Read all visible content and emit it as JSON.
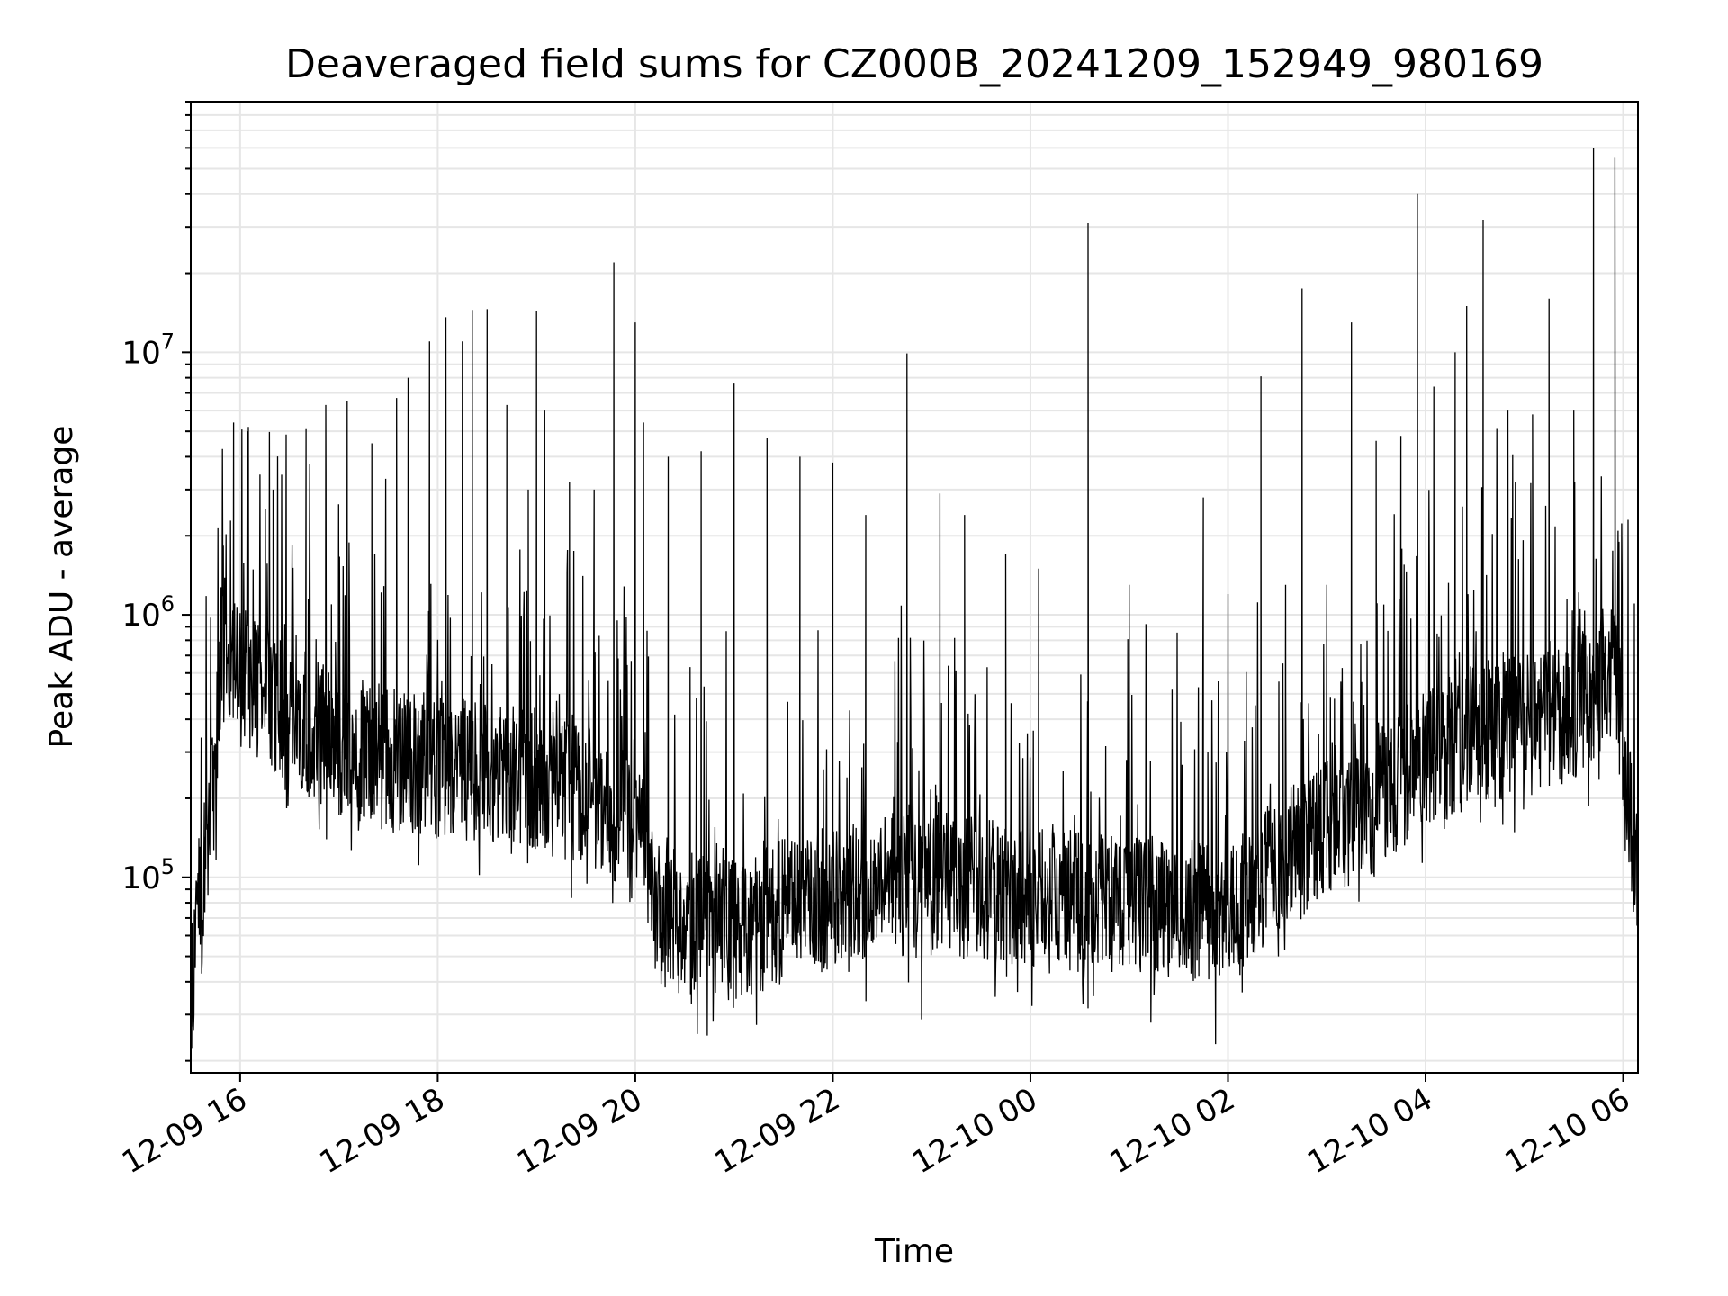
{
  "chart_data": {
    "type": "line",
    "title": "Deaveraged field sums for CZ000B_20241209_152949_980169",
    "xlabel": "Time",
    "ylabel": "Peak ADU - average",
    "yscale": "log",
    "ylim": [
      18000,
      90000000
    ],
    "xlim": [
      "2024-12-09 15:30",
      "2024-12-10 06:09"
    ],
    "grid": true,
    "line_color": "#000000",
    "grid_color": "#e6e6e6",
    "x_ticks": [
      {
        "t": "2024-12-09 16:00",
        "label": "12-09 16"
      },
      {
        "t": "2024-12-09 18:00",
        "label": "12-09 18"
      },
      {
        "t": "2024-12-09 20:00",
        "label": "12-09 20"
      },
      {
        "t": "2024-12-09 22:00",
        "label": "12-09 22"
      },
      {
        "t": "2024-12-10 00:00",
        "label": "12-10 00"
      },
      {
        "t": "2024-12-10 02:00",
        "label": "12-10 02"
      },
      {
        "t": "2024-12-10 04:00",
        "label": "12-10 04"
      },
      {
        "t": "2024-12-10 06:00",
        "label": "12-10 06"
      }
    ],
    "y_ticks": [
      {
        "value": 100000,
        "base": "10",
        "exp": "5"
      },
      {
        "value": 1000000,
        "base": "10",
        "exp": "6"
      },
      {
        "value": 10000000,
        "base": "10",
        "exp": "7"
      }
    ],
    "series": [
      {
        "x": [
          "2024-12-09 15:30",
          "2024-12-09 15:36",
          "2024-12-09 15:42",
          "2024-12-09 15:50",
          "2024-12-09 16:00",
          "2024-12-09 16:15",
          "2024-12-09 16:30",
          "2024-12-09 17:00",
          "2024-12-09 17:30",
          "2024-12-09 18:00",
          "2024-12-09 18:30",
          "2024-12-09 19:00",
          "2024-12-09 19:30",
          "2024-12-09 20:00",
          "2024-12-09 20:15",
          "2024-12-09 20:40",
          "2024-12-09 21:00",
          "2024-12-09 21:30",
          "2024-12-09 22:00",
          "2024-12-09 22:30",
          "2024-12-09 23:00",
          "2024-12-09 23:30",
          "2024-12-10 00:00",
          "2024-12-10 00:30",
          "2024-12-10 01:00",
          "2024-12-10 01:30",
          "2024-12-10 02:00",
          "2024-12-10 02:30",
          "2024-12-10 03:00",
          "2024-12-10 03:30",
          "2024-12-10 04:00",
          "2024-12-10 04:30",
          "2024-12-10 05:00",
          "2024-12-10 05:30",
          "2024-12-10 05:55",
          "2024-12-10 06:09"
        ],
        "y": [
          40000,
          70000,
          200000,
          700000,
          600000,
          500000,
          420000,
          320000,
          280000,
          270000,
          250000,
          240000,
          200000,
          170000,
          70000,
          65000,
          62000,
          75000,
          85000,
          90000,
          95000,
          92000,
          85000,
          80000,
          78000,
          75000,
          72000,
          110000,
          150000,
          190000,
          280000,
          350000,
          380000,
          420000,
          650000,
          90000
        ]
      }
    ],
    "spikes": [
      {
        "t": "2024-12-09 15:56",
        "value": 5400000
      },
      {
        "t": "2024-12-09 16:05",
        "value": 5200000
      },
      {
        "t": "2024-12-09 16:20",
        "value": 3000000
      },
      {
        "t": "2024-12-09 16:40",
        "value": 5100000
      },
      {
        "t": "2024-12-09 16:52",
        "value": 6300000
      },
      {
        "t": "2024-12-09 17:05",
        "value": 6500000
      },
      {
        "t": "2024-12-09 17:20",
        "value": 4500000
      },
      {
        "t": "2024-12-09 17:35",
        "value": 6700000
      },
      {
        "t": "2024-12-09 17:42",
        "value": 8000000
      },
      {
        "t": "2024-12-09 17:55",
        "value": 11000000
      },
      {
        "t": "2024-12-09 18:05",
        "value": 13600000
      },
      {
        "t": "2024-12-09 18:15",
        "value": 11000000
      },
      {
        "t": "2024-12-09 18:21",
        "value": 14500000
      },
      {
        "t": "2024-12-09 18:30",
        "value": 14600000
      },
      {
        "t": "2024-12-09 18:42",
        "value": 6300000
      },
      {
        "t": "2024-12-09 18:55",
        "value": 3000000
      },
      {
        "t": "2024-12-09 19:00",
        "value": 14300000
      },
      {
        "t": "2024-12-09 19:05",
        "value": 6000000
      },
      {
        "t": "2024-12-09 19:20",
        "value": 3200000
      },
      {
        "t": "2024-12-09 19:35",
        "value": 3000000
      },
      {
        "t": "2024-12-09 19:47",
        "value": 22000000
      },
      {
        "t": "2024-12-09 20:00",
        "value": 13000000
      },
      {
        "t": "2024-12-09 20:05",
        "value": 5400000
      },
      {
        "t": "2024-12-09 20:20",
        "value": 4000000
      },
      {
        "t": "2024-12-09 20:40",
        "value": 4200000
      },
      {
        "t": "2024-12-09 21:00",
        "value": 7600000
      },
      {
        "t": "2024-12-09 21:20",
        "value": 4700000
      },
      {
        "t": "2024-12-09 21:40",
        "value": 4000000
      },
      {
        "t": "2024-12-09 22:00",
        "value": 3800000
      },
      {
        "t": "2024-12-09 22:20",
        "value": 2400000
      },
      {
        "t": "2024-12-09 22:45",
        "value": 9900000
      },
      {
        "t": "2024-12-09 23:05",
        "value": 2900000
      },
      {
        "t": "2024-12-09 23:20",
        "value": 2400000
      },
      {
        "t": "2024-12-09 23:45",
        "value": 1700000
      },
      {
        "t": "2024-12-10 00:05",
        "value": 1500000
      },
      {
        "t": "2024-12-10 00:35",
        "value": 31000000
      },
      {
        "t": "2024-12-10 01:00",
        "value": 1300000
      },
      {
        "t": "2024-12-10 01:45",
        "value": 2800000
      },
      {
        "t": "2024-12-10 02:00",
        "value": 1200000
      },
      {
        "t": "2024-12-10 02:20",
        "value": 8100000
      },
      {
        "t": "2024-12-10 02:35",
        "value": 1300000
      },
      {
        "t": "2024-12-10 02:45",
        "value": 17500000
      },
      {
        "t": "2024-12-10 03:00",
        "value": 1300000
      },
      {
        "t": "2024-12-10 03:15",
        "value": 13000000
      },
      {
        "t": "2024-12-10 03:30",
        "value": 4600000
      },
      {
        "t": "2024-12-10 03:45",
        "value": 4800000
      },
      {
        "t": "2024-12-10 03:55",
        "value": 40000000
      },
      {
        "t": "2024-12-10 04:05",
        "value": 7400000
      },
      {
        "t": "2024-12-10 04:18",
        "value": 10000000
      },
      {
        "t": "2024-12-10 04:25",
        "value": 15000000
      },
      {
        "t": "2024-12-10 04:35",
        "value": 32000000
      },
      {
        "t": "2024-12-10 04:50",
        "value": 6000000
      },
      {
        "t": "2024-12-10 05:05",
        "value": 5800000
      },
      {
        "t": "2024-12-10 05:15",
        "value": 16000000
      },
      {
        "t": "2024-12-10 05:30",
        "value": 6000000
      },
      {
        "t": "2024-12-10 05:42",
        "value": 60000000
      },
      {
        "t": "2024-12-10 05:55",
        "value": 55000000
      },
      {
        "t": "2024-12-10 06:03",
        "value": 2300000
      }
    ]
  }
}
